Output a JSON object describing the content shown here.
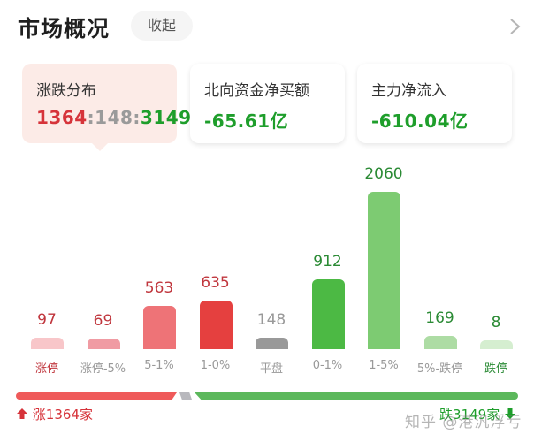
{
  "header": {
    "title": "市场概况",
    "collapse_label": "收起",
    "chevron_icon": "chevron-right-icon"
  },
  "cards": [
    {
      "label": "涨跌分布",
      "up": "1364",
      "sep1": ":",
      "flat": "148",
      "sep2": ":",
      "down": "3149",
      "active": true
    },
    {
      "label": "北向资金净买额",
      "value": "-65.61亿"
    },
    {
      "label": "主力净流入",
      "value": "-610.04亿"
    }
  ],
  "colors": {
    "up": "#d6333a",
    "flat": "#9a9a9a",
    "down": "#1e9e2b",
    "active_card_bg": "#fcebe7"
  },
  "chart_data": {
    "type": "bar",
    "title": "涨跌分布",
    "categories": [
      "涨停",
      "涨停-5%",
      "5-1%",
      "1-0%",
      "平盘",
      "0-1%",
      "1-5%",
      "5%-跌停",
      "跌停"
    ],
    "values": [
      97,
      69,
      563,
      635,
      148,
      912,
      2060,
      169,
      8
    ],
    "bar_colors": [
      "#f8c6c9",
      "#f09ba3",
      "#ee7377",
      "#e5403f",
      "#999999",
      "#4cb944",
      "#7dcb72",
      "#addca4",
      "#d5eed0"
    ],
    "label_colors": [
      "#c0363d",
      "#c0363d",
      "#c0363d",
      "#c0363d",
      "#999999",
      "#2a8a34",
      "#2a8a34",
      "#2a8a34",
      "#2a8a34"
    ],
    "xlabel": "",
    "ylabel": "",
    "grid": false,
    "legend": "none"
  },
  "ratio_bar": {
    "up_label": "涨1364家",
    "down_label": "跌3149家",
    "up": 1364,
    "flat": 148,
    "down": 3149
  },
  "watermark": "知乎 @港汎浮亏"
}
